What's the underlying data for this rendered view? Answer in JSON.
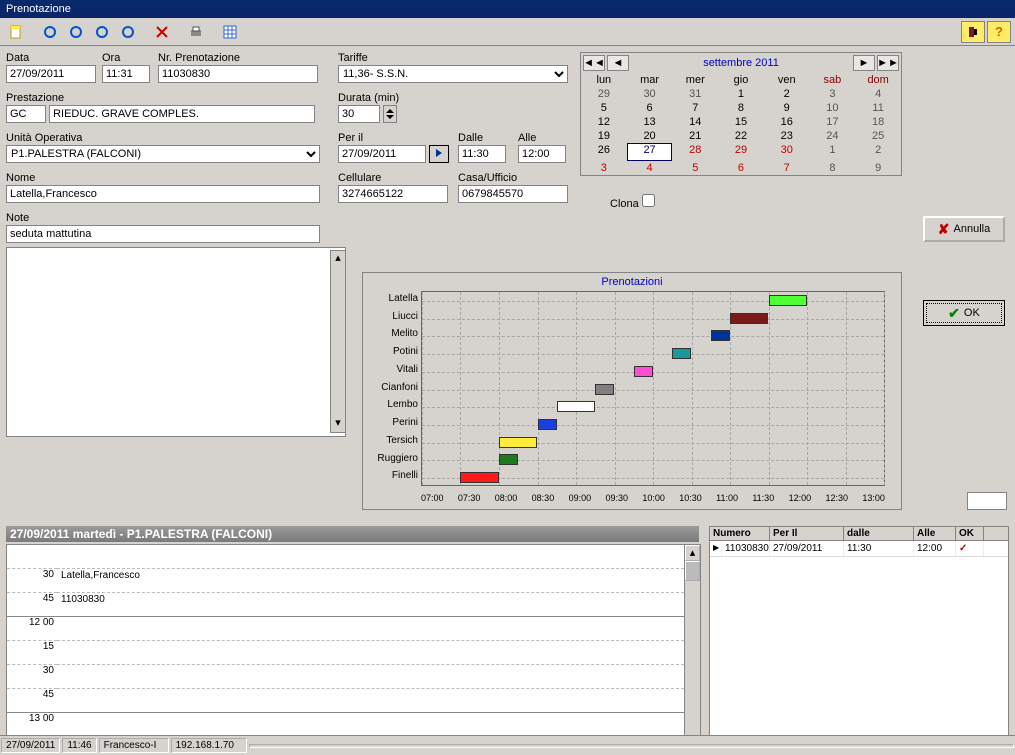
{
  "window": {
    "title": "Prenotazione"
  },
  "toolbar_icons": [
    "new",
    "blue1",
    "blue2",
    "blue3",
    "blue4",
    "delete",
    "print",
    "grid",
    "help1",
    "help2"
  ],
  "fields": {
    "data_label": "Data",
    "data": "27/09/2011",
    "ora_label": "Ora",
    "ora": "11:31",
    "nrpren_label": "Nr. Prenotazione",
    "nrpren": "11030830",
    "tariffe_label": "Tariffe",
    "tariffe": "11,36- S.S.N.",
    "prestazione_label": "Prestazione",
    "prestazione_code": "GC",
    "prestazione_desc": "RIEDUC. GRAVE COMPLES.",
    "durata_label": "Durata  (min)",
    "durata": "30",
    "unita_label": "Unità Operativa",
    "unita": "P1.PALESTRA (FALCONI)",
    "peril_label": "Per il",
    "peril": "27/09/2011",
    "dalle_label": "Dalle",
    "dalle": "11:30",
    "alle_label": "Alle",
    "alle": "12:00",
    "nome_label": "Nome",
    "nome": "Latella,Francesco",
    "cellulare_label": "Cellulare",
    "cellulare": "3274665122",
    "casa_label": "Casa/Ufficio",
    "casa": "0679845570",
    "note_label": "Note",
    "note": "seduta mattutina",
    "clona_label": "Clona"
  },
  "calendar": {
    "title": "settembre 2011",
    "dow": [
      "lun",
      "mar",
      "mer",
      "gio",
      "ven",
      "sab",
      "dom"
    ],
    "weeks": [
      [
        {
          "d": "29",
          "t": "dim"
        },
        {
          "d": "30",
          "t": "dim"
        },
        {
          "d": "31",
          "t": "dim"
        },
        {
          "d": "1",
          "t": "cur"
        },
        {
          "d": "2",
          "t": "cur"
        },
        {
          "d": "3",
          "t": "dim"
        },
        {
          "d": "4",
          "t": "dim"
        }
      ],
      [
        {
          "d": "5",
          "t": "cur"
        },
        {
          "d": "6",
          "t": "cur"
        },
        {
          "d": "7",
          "t": "cur"
        },
        {
          "d": "8",
          "t": "cur"
        },
        {
          "d": "9",
          "t": "cur"
        },
        {
          "d": "10",
          "t": "dim"
        },
        {
          "d": "11",
          "t": "dim"
        }
      ],
      [
        {
          "d": "12",
          "t": "cur"
        },
        {
          "d": "13",
          "t": "cur"
        },
        {
          "d": "14",
          "t": "cur"
        },
        {
          "d": "15",
          "t": "cur"
        },
        {
          "d": "16",
          "t": "cur"
        },
        {
          "d": "17",
          "t": "dim"
        },
        {
          "d": "18",
          "t": "dim"
        }
      ],
      [
        {
          "d": "19",
          "t": "cur"
        },
        {
          "d": "20",
          "t": "cur"
        },
        {
          "d": "21",
          "t": "cur"
        },
        {
          "d": "22",
          "t": "cur"
        },
        {
          "d": "23",
          "t": "cur"
        },
        {
          "d": "24",
          "t": "dim"
        },
        {
          "d": "25",
          "t": "dim"
        }
      ],
      [
        {
          "d": "26",
          "t": "cur"
        },
        {
          "d": "27",
          "t": "sel"
        },
        {
          "d": "28",
          "t": "red"
        },
        {
          "d": "29",
          "t": "red"
        },
        {
          "d": "30",
          "t": "red"
        },
        {
          "d": "1",
          "t": "dim"
        },
        {
          "d": "2",
          "t": "dim"
        }
      ],
      [
        {
          "d": "3",
          "t": "red"
        },
        {
          "d": "4",
          "t": "red"
        },
        {
          "d": "5",
          "t": "red"
        },
        {
          "d": "6",
          "t": "red"
        },
        {
          "d": "7",
          "t": "red"
        },
        {
          "d": "8",
          "t": "dim"
        },
        {
          "d": "9",
          "t": "dim"
        }
      ]
    ]
  },
  "gantt": {
    "title": "Prenotazioni",
    "x_start": 7.0,
    "x_end": 13.0,
    "x_ticks": [
      "07:00",
      "07:30",
      "08:00",
      "08:30",
      "09:00",
      "09:30",
      "10:00",
      "10:30",
      "11:00",
      "11:30",
      "12:00",
      "12:30",
      "13:00"
    ],
    "grid_color": "#a8a8a8",
    "series": [
      {
        "name": "Latella",
        "start": 11.5,
        "end": 12.0,
        "color": "#4dff33"
      },
      {
        "name": "Liucci",
        "start": 11.0,
        "end": 11.5,
        "color": "#7a1a1a"
      },
      {
        "name": "Melito",
        "start": 10.75,
        "end": 11.0,
        "color": "#003399"
      },
      {
        "name": "Potini",
        "start": 10.25,
        "end": 10.5,
        "color": "#1b9999"
      },
      {
        "name": "Vitali",
        "start": 9.75,
        "end": 10.0,
        "color": "#ff4dd6"
      },
      {
        "name": "Cianfoni",
        "start": 9.25,
        "end": 9.5,
        "color": "#808080"
      },
      {
        "name": "Lembo",
        "start": 8.75,
        "end": 9.25,
        "color": "#ffffff"
      },
      {
        "name": "Perini",
        "start": 8.5,
        "end": 8.75,
        "color": "#1a3fe0"
      },
      {
        "name": "Tersich",
        "start": 8.0,
        "end": 8.5,
        "color": "#ffeb3b"
      },
      {
        "name": "Ruggiero",
        "start": 8.0,
        "end": 8.25,
        "color": "#1e7a1e"
      },
      {
        "name": "Finelli",
        "start": 7.5,
        "end": 8.0,
        "color": "#ff1a1a"
      }
    ]
  },
  "buttons": {
    "annulla": "Annulla",
    "ok": "OK"
  },
  "infobar": "27/09/2011 martedì -   P1.PALESTRA (FALCONI)",
  "schedule": {
    "rows": [
      {
        "t": "",
        "hr": false
      },
      {
        "t": "30",
        "hr": false,
        "text": "Latella,Francesco"
      },
      {
        "t": "45",
        "hr": true,
        "text": "11030830"
      },
      {
        "t": "12 00",
        "hr": false
      },
      {
        "t": "15",
        "hr": false
      },
      {
        "t": "30",
        "hr": false
      },
      {
        "t": "45",
        "hr": true
      },
      {
        "t": "13 00",
        "hr": false
      },
      {
        "t": "15",
        "hr": false
      }
    ]
  },
  "rtable": {
    "cols": [
      "Numero",
      "Per Il",
      "dalle",
      "Alle",
      "OK"
    ],
    "widths": [
      60,
      74,
      70,
      42,
      28
    ],
    "rows": [
      {
        "numero": "11030830",
        "peril": "27/09/2011",
        "dalle": "11:30",
        "alle": "12:00",
        "ok": "✓"
      }
    ]
  },
  "statusbar": {
    "date": "27/09/2011",
    "time": "11:46",
    "user": "Francesco-I",
    "ip": "192.168.1.70"
  }
}
